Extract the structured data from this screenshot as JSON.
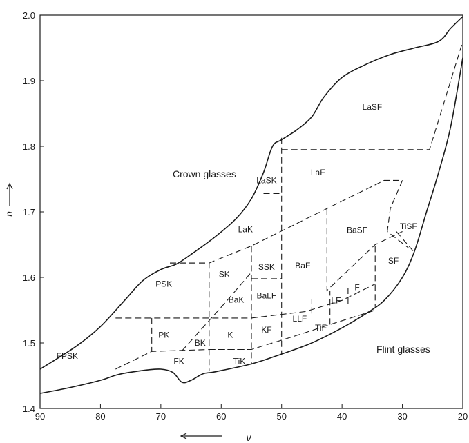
{
  "chart_data": {
    "type": "area",
    "xlabel": "ν",
    "ylabel": "n",
    "xlim": [
      90,
      20
    ],
    "ylim": [
      1.4,
      2.0
    ],
    "xticks": [
      "90",
      "80",
      "70",
      "60",
      "50",
      "40",
      "30",
      "20"
    ],
    "yticks": [
      "1.4",
      "1.5",
      "1.6",
      "1.7",
      "1.8",
      "1.9",
      "2.0"
    ],
    "annotations": {
      "crown": "Crown glasses",
      "flint": "Flint glasses"
    },
    "boundaries": {
      "upper": [
        [
          90,
          1.46
        ],
        [
          84,
          1.495
        ],
        [
          80,
          1.525
        ],
        [
          76,
          1.565
        ],
        [
          73,
          1.595
        ],
        [
          70,
          1.612
        ],
        [
          67.5,
          1.62
        ],
        [
          65,
          1.635
        ],
        [
          61,
          1.662
        ],
        [
          57.5,
          1.69
        ],
        [
          55,
          1.72
        ],
        [
          53,
          1.76
        ],
        [
          51.5,
          1.8
        ],
        [
          50,
          1.81
        ],
        [
          47.5,
          1.825
        ],
        [
          45,
          1.845
        ],
        [
          43,
          1.875
        ],
        [
          40,
          1.905
        ],
        [
          36,
          1.925
        ],
        [
          32,
          1.94
        ],
        [
          28,
          1.95
        ],
        [
          24,
          1.96
        ],
        [
          22,
          1.98
        ],
        [
          20,
          1.998
        ]
      ],
      "lower": [
        [
          90,
          1.423
        ],
        [
          85,
          1.432
        ],
        [
          80,
          1.443
        ],
        [
          77,
          1.452
        ],
        [
          73,
          1.458
        ],
        [
          70,
          1.46
        ],
        [
          68,
          1.455
        ],
        [
          66.5,
          1.44
        ],
        [
          65,
          1.443
        ],
        [
          63,
          1.453
        ],
        [
          61,
          1.456
        ],
        [
          55,
          1.468
        ],
        [
          50,
          1.483
        ],
        [
          45,
          1.5
        ],
        [
          40,
          1.523
        ],
        [
          36,
          1.545
        ],
        [
          33,
          1.565
        ],
        [
          30,
          1.6
        ],
        [
          28,
          1.64
        ],
        [
          26,
          1.7
        ],
        [
          24,
          1.76
        ],
        [
          22,
          1.83
        ],
        [
          20,
          1.935
        ]
      ]
    },
    "regions": [
      {
        "label": "FPSK",
        "x": 85.5,
        "y": 1.48
      },
      {
        "label": "PSK",
        "x": 69.5,
        "y": 1.59
      },
      {
        "label": "PK",
        "x": 69.5,
        "y": 1.512
      },
      {
        "label": "FK",
        "x": 67,
        "y": 1.472
      },
      {
        "label": "BK",
        "x": 63.5,
        "y": 1.5
      },
      {
        "label": "SK",
        "x": 59.5,
        "y": 1.605
      },
      {
        "label": "BaK",
        "x": 57.5,
        "y": 1.566
      },
      {
        "label": "K",
        "x": 58.5,
        "y": 1.512
      },
      {
        "label": "TiK",
        "x": 57,
        "y": 1.472
      },
      {
        "label": "KF",
        "x": 52.5,
        "y": 1.52
      },
      {
        "label": "SSK",
        "x": 52.5,
        "y": 1.616
      },
      {
        "label": "BaLF",
        "x": 52.5,
        "y": 1.572
      },
      {
        "label": "LaK",
        "x": 56,
        "y": 1.673
      },
      {
        "label": "LaSK",
        "x": 52.5,
        "y": 1.748
      },
      {
        "label": "BaF",
        "x": 46.5,
        "y": 1.618
      },
      {
        "label": "LaF",
        "x": 44,
        "y": 1.76
      },
      {
        "label": "LLF",
        "x": 47,
        "y": 1.537
      },
      {
        "label": "TiF",
        "x": 43.5,
        "y": 1.523
      },
      {
        "label": "LF",
        "x": 41,
        "y": 1.565
      },
      {
        "label": "F",
        "x": 37.5,
        "y": 1.585
      },
      {
        "label": "BaSF",
        "x": 37.5,
        "y": 1.672
      },
      {
        "label": "SF",
        "x": 31.5,
        "y": 1.625
      },
      {
        "label": "TiSF",
        "x": 29,
        "y": 1.678
      },
      {
        "label": "LaSF",
        "x": 35,
        "y": 1.86
      }
    ],
    "dashed_lines": [
      [
        [
          77.5,
          1.46
        ],
        [
          71.5,
          1.487
        ],
        [
          62,
          1.49
        ],
        [
          55,
          1.49
        ]
      ],
      [
        [
          77.5,
          1.538
        ],
        [
          62,
          1.538
        ],
        [
          55,
          1.538
        ]
      ],
      [
        [
          71.5,
          1.538
        ],
        [
          71.5,
          1.487
        ]
      ],
      [
        [
          68.5,
          1.622
        ],
        [
          62,
          1.622
        ],
        [
          62,
          1.538
        ],
        [
          62,
          1.457
        ]
      ],
      [
        [
          55,
          1.648
        ],
        [
          55,
          1.598
        ],
        [
          55,
          1.538
        ],
        [
          55,
          1.467
        ]
      ],
      [
        [
          68.5,
          1.622
        ],
        [
          62,
          1.622
        ],
        [
          55,
          1.648
        ],
        [
          42.5,
          1.705
        ],
        [
          33,
          1.748
        ],
        [
          30,
          1.748
        ]
      ],
      [
        [
          66.5,
          1.488
        ],
        [
          59,
          1.565
        ],
        [
          55,
          1.608
        ]
      ],
      [
        [
          55,
          1.598
        ],
        [
          50,
          1.598
        ]
      ],
      [
        [
          55,
          1.538
        ],
        [
          46,
          1.548
        ],
        [
          40,
          1.565
        ],
        [
          34.5,
          1.59
        ]
      ],
      [
        [
          62,
          1.49
        ],
        [
          55,
          1.49
        ],
        [
          48,
          1.51
        ],
        [
          42,
          1.528
        ],
        [
          34.5,
          1.55
        ]
      ],
      [
        [
          53,
          1.728
        ],
        [
          50,
          1.728
        ]
      ],
      [
        [
          50,
          1.813
        ],
        [
          50,
          1.483
        ]
      ],
      [
        [
          50,
          1.795
        ],
        [
          25.5,
          1.795
        ],
        [
          20,
          1.96
        ]
      ],
      [
        [
          42.5,
          1.705
        ],
        [
          42.5,
          1.58
        ],
        [
          34.5,
          1.65
        ],
        [
          30,
          1.67
        ]
      ],
      [
        [
          45,
          1.545
        ],
        [
          45,
          1.567
        ]
      ],
      [
        [
          42,
          1.528
        ],
        [
          42,
          1.58
        ]
      ],
      [
        [
          39,
          1.56
        ],
        [
          39,
          1.585
        ]
      ],
      [
        [
          34.5,
          1.648
        ],
        [
          34.5,
          1.555
        ]
      ],
      [
        [
          30,
          1.748
        ],
        [
          32,
          1.705
        ],
        [
          32.5,
          1.67
        ],
        [
          29,
          1.645
        ]
      ],
      [
        [
          31,
          1.67
        ],
        [
          28,
          1.638
        ]
      ]
    ]
  }
}
